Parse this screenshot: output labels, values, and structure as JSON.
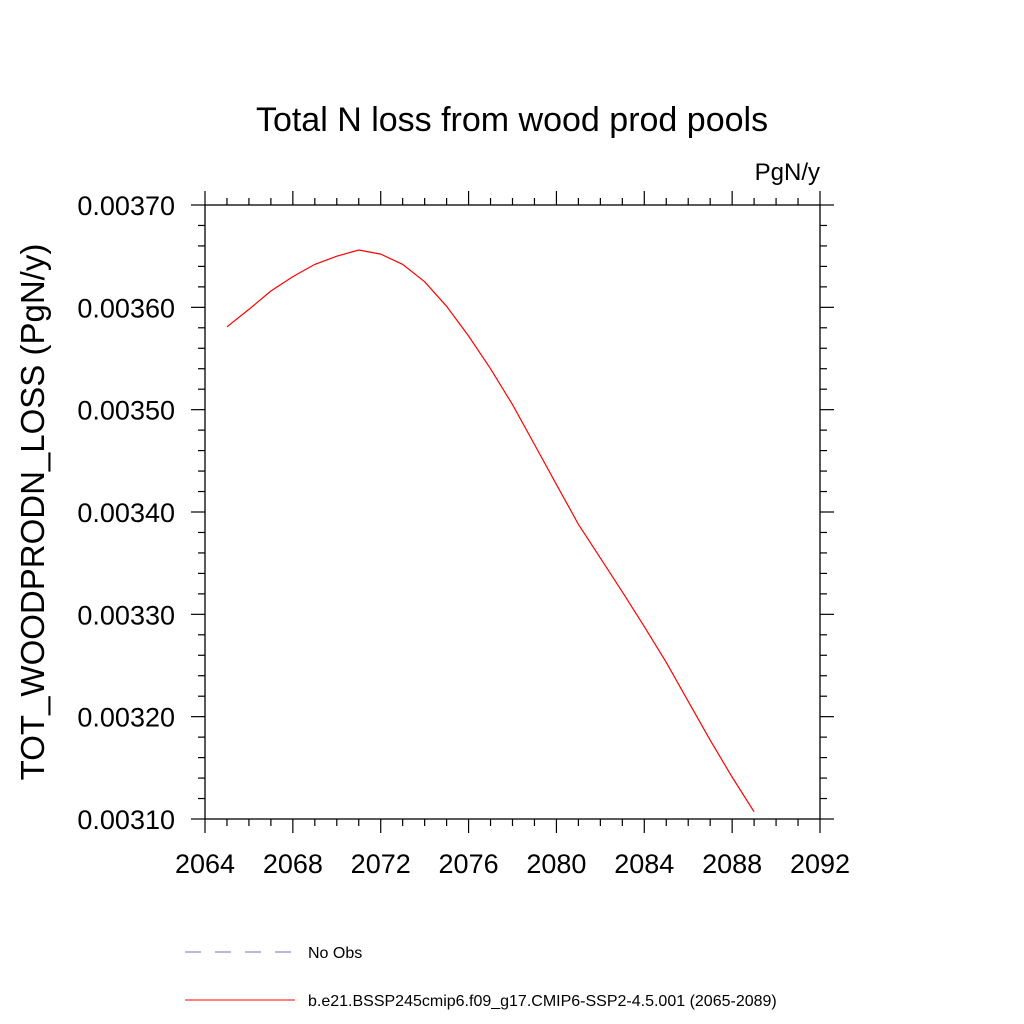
{
  "chart_data": {
    "type": "line",
    "title": "Total N loss from wood prod pools",
    "units_label": "PgN/y",
    "ylabel": "TOT_WOODPRODN_LOSS  (PgN/y)",
    "xlabel": "",
    "xlim": [
      2064,
      2092
    ],
    "ylim": [
      0.0031,
      0.0037
    ],
    "x_ticks": [
      "2064",
      "2068",
      "2072",
      "2076",
      "2080",
      "2084",
      "2088",
      "2092"
    ],
    "y_ticks": [
      "0.00310",
      "0.00320",
      "0.00330",
      "0.00340",
      "0.00350",
      "0.00360",
      "0.00370"
    ],
    "grid": false,
    "legend_position": "bottom",
    "series": [
      {
        "name": "No Obs",
        "color": "#7b68c8",
        "dash": "dashed",
        "x": [],
        "y": []
      },
      {
        "name": "b.e21.BSSP245cmip6.f09_g17.CMIP6-SSP2-4.5.001 (2065-2089)",
        "color": "#ff0000",
        "dash": "solid",
        "x": [
          2065,
          2066,
          2067,
          2068,
          2069,
          2070,
          2071,
          2072,
          2073,
          2074,
          2075,
          2076,
          2077,
          2078,
          2079,
          2080,
          2081,
          2082,
          2083,
          2084,
          2085,
          2086,
          2087,
          2088,
          2089
        ],
        "y": [
          0.003581,
          0.003598,
          0.003616,
          0.00363,
          0.003642,
          0.00365,
          0.003656,
          0.003652,
          0.003642,
          0.003625,
          0.003601,
          0.003572,
          0.00354,
          0.003505,
          0.003466,
          0.003427,
          0.003388,
          0.003355,
          0.003322,
          0.003288,
          0.003253,
          0.003215,
          0.003177,
          0.003141,
          0.003107
        ]
      }
    ]
  }
}
